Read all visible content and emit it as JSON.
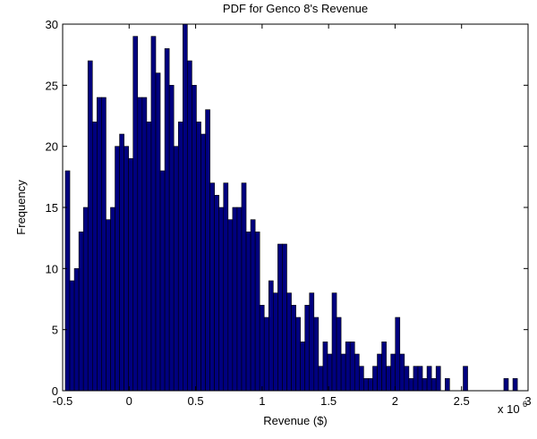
{
  "chart_data": {
    "type": "histogram",
    "title": "PDF for Genco 8's Revenue",
    "x_label": "Revenue ($)",
    "y_label": "Frequency",
    "x_exponent": {
      "base": "x 10",
      "power": "6"
    },
    "color": "#00007f",
    "edge_color": "#000000",
    "bins": [
      -0.48,
      -0.446,
      -0.412,
      -0.378,
      -0.344,
      -0.31,
      -0.276,
      -0.242,
      -0.208,
      -0.174,
      -0.14,
      -0.106,
      -0.072,
      -0.038,
      -0.004,
      0.03,
      0.064,
      0.098,
      0.132,
      0.166,
      0.2,
      0.234,
      0.268,
      0.302,
      0.336,
      0.37,
      0.404,
      0.438,
      0.472,
      0.506,
      0.54,
      0.574,
      0.608,
      0.642,
      0.676,
      0.71,
      0.744,
      0.778,
      0.812,
      0.846,
      0.88,
      0.914,
      0.948,
      0.982,
      1.016,
      1.05,
      1.084,
      1.118,
      1.152,
      1.186,
      1.22,
      1.254,
      1.288,
      1.322,
      1.356,
      1.39,
      1.424,
      1.458,
      1.492,
      1.526,
      1.56,
      1.594,
      1.628,
      1.662,
      1.696,
      1.73,
      1.764,
      1.798,
      1.832,
      1.866,
      1.9,
      1.934,
      1.968,
      2.002,
      2.036,
      2.07,
      2.104,
      2.138,
      2.172,
      2.206,
      2.24,
      2.274,
      2.308,
      2.342,
      2.376,
      2.41,
      2.444,
      2.478,
      2.512,
      2.546,
      2.58,
      2.614,
      2.648,
      2.682,
      2.716,
      2.75,
      2.784,
      2.818,
      2.852,
      2.886,
      2.92
    ],
    "values": [
      18,
      9,
      10,
      13,
      15,
      27,
      22,
      24,
      24,
      14,
      15,
      20,
      21,
      20,
      19,
      29,
      24,
      24,
      22,
      29,
      26,
      18,
      28,
      25,
      20,
      22,
      30,
      27,
      25,
      22,
      21,
      23,
      17,
      16,
      15,
      17,
      14,
      15,
      15,
      17,
      13,
      14,
      13,
      7,
      6,
      9,
      8,
      12,
      12,
      8,
      7,
      6,
      4,
      7,
      8,
      6,
      2,
      4,
      3,
      8,
      6,
      3,
      4,
      4,
      3,
      2,
      1,
      1,
      2,
      3,
      4,
      2,
      3,
      6,
      3,
      2,
      1,
      2,
      2,
      1,
      2,
      1,
      2,
      0,
      1,
      0,
      0,
      0,
      2,
      0,
      0,
      0,
      0,
      0,
      0,
      0,
      0,
      1,
      0,
      1
    ],
    "xlim": [
      -0.5,
      3
    ],
    "ylim": [
      0,
      30
    ],
    "xticks": [
      -0.5,
      0,
      0.5,
      1,
      1.5,
      2,
      2.5,
      3
    ],
    "yticks": [
      0,
      5,
      10,
      15,
      20,
      25,
      30
    ]
  }
}
